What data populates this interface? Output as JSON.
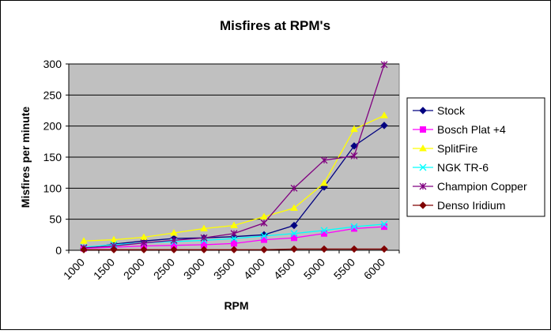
{
  "chart_data": {
    "type": "line",
    "title": "Misfires at RPM's",
    "xlabel": "RPM",
    "ylabel": "Misfires per minute",
    "x_tick_labels": [
      "1000",
      "1500",
      "2000",
      "2500",
      "3000",
      "3500",
      "4000",
      "4500",
      "5000",
      "5500",
      "6000"
    ],
    "ylim": [
      0,
      300
    ],
    "y_ticks": [
      0,
      50,
      100,
      150,
      200,
      250,
      300
    ],
    "x": [
      1000,
      1500,
      2000,
      2500,
      3000,
      3500,
      4000,
      4500,
      5000,
      5500,
      6000
    ],
    "grid": "horizontal",
    "legend_position": "right",
    "plot_background": "#c0c0c0",
    "series": [
      {
        "name": "Stock",
        "color": "#000080",
        "marker": "diamond",
        "values": [
          3,
          10,
          15,
          19,
          20,
          22,
          25,
          40,
          102,
          168,
          201
        ]
      },
      {
        "name": "Bosch Plat +4",
        "color": "#ff00ff",
        "marker": "square",
        "values": [
          3,
          5,
          7,
          8,
          9,
          11,
          17,
          20,
          27,
          35,
          38
        ]
      },
      {
        "name": "SplitFire",
        "color": "#ffff00",
        "marker": "triangle",
        "values": [
          15,
          17,
          21,
          28,
          35,
          40,
          54,
          68,
          108,
          195,
          217
        ]
      },
      {
        "name": "NGK TR-6",
        "color": "#00ffff",
        "marker": "x",
        "values": [
          5,
          9,
          12,
          14,
          16,
          19,
          23,
          27,
          32,
          38,
          42
        ]
      },
      {
        "name": "Champion Copper",
        "color": "#800080",
        "marker": "star",
        "values": [
          4,
          7,
          12,
          16,
          20,
          27,
          44,
          100,
          145,
          152,
          299
        ]
      },
      {
        "name": "Denso Iridium",
        "color": "#800000",
        "marker": "diamond",
        "values": [
          1,
          1,
          1,
          1,
          1,
          1,
          1,
          2,
          2,
          2,
          2
        ]
      }
    ]
  }
}
